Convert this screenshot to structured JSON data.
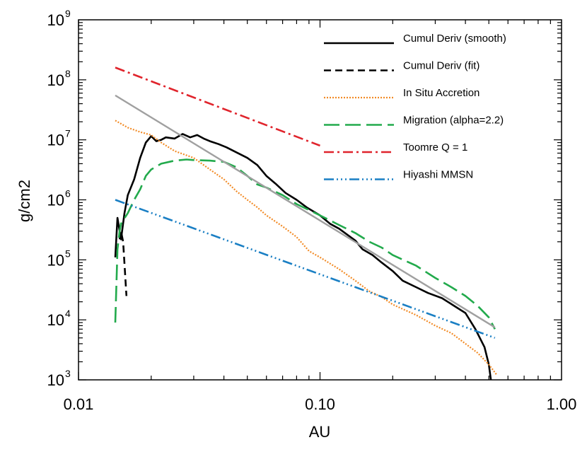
{
  "chart_data": {
    "type": "line",
    "title": "",
    "xlabel": "AU",
    "ylabel": "g/cm2",
    "xscale": "log",
    "yscale": "log",
    "xlim": [
      0.01,
      1.0
    ],
    "ylim": [
      1000,
      1000000000
    ],
    "x_tick_labels": [
      "0.01",
      "0.10",
      "1.00"
    ],
    "x_tick_values": [
      0.01,
      0.1,
      1.0
    ],
    "y_tick_values": [
      1000,
      10000,
      100000,
      1000000,
      10000000,
      100000000,
      1000000000
    ],
    "y_tick_labels": [
      {
        "base": "10",
        "exp": "3"
      },
      {
        "base": "10",
        "exp": "4"
      },
      {
        "base": "10",
        "exp": "5"
      },
      {
        "base": "10",
        "exp": "6"
      },
      {
        "base": "10",
        "exp": "7"
      },
      {
        "base": "10",
        "exp": "8"
      },
      {
        "base": "10",
        "exp": "9"
      }
    ],
    "legend_position": "top-right",
    "grid": false,
    "series": [
      {
        "name": "Cumul Deriv (smooth)",
        "color": "#000000",
        "dash": "solid",
        "width": 2.6,
        "points": [
          [
            0.0142,
            110000.0
          ],
          [
            0.0145,
            500000.0
          ],
          [
            0.015,
            220000.0
          ],
          [
            0.0155,
            600000.0
          ],
          [
            0.016,
            1200000.0
          ],
          [
            0.017,
            2200000.0
          ],
          [
            0.018,
            5000000.0
          ],
          [
            0.019,
            9000000.0
          ],
          [
            0.02,
            11500000.0
          ],
          [
            0.021,
            9500000.0
          ],
          [
            0.022,
            10000000.0
          ],
          [
            0.023,
            11000000.0
          ],
          [
            0.025,
            10500000.0
          ],
          [
            0.027,
            12500000.0
          ],
          [
            0.029,
            11000000.0
          ],
          [
            0.031,
            12000000.0
          ],
          [
            0.033,
            10500000.0
          ],
          [
            0.035,
            9500000.0
          ],
          [
            0.038,
            8500000.0
          ],
          [
            0.041,
            7500000.0
          ],
          [
            0.045,
            6200000.0
          ],
          [
            0.05,
            5000000.0
          ],
          [
            0.055,
            3800000.0
          ],
          [
            0.06,
            2500000.0
          ],
          [
            0.066,
            1800000.0
          ],
          [
            0.072,
            1300000.0
          ],
          [
            0.08,
            1000000.0
          ],
          [
            0.088,
            750000.0
          ],
          [
            0.1,
            550000.0
          ],
          [
            0.11,
            400000.0
          ],
          [
            0.12,
            330000.0
          ],
          [
            0.13,
            260000.0
          ],
          [
            0.14,
            210000.0
          ],
          [
            0.15,
            150000.0
          ],
          [
            0.165,
            120000.0
          ],
          [
            0.18,
            90000.0
          ],
          [
            0.2,
            65000.0
          ],
          [
            0.22,
            45000.0
          ],
          [
            0.25,
            35000.0
          ],
          [
            0.28,
            28000.0
          ],
          [
            0.32,
            23000.0
          ],
          [
            0.36,
            17000.0
          ],
          [
            0.4,
            13000.0
          ],
          [
            0.44,
            7000.0
          ],
          [
            0.48,
            3500.0
          ],
          [
            0.5,
            1800.0
          ],
          [
            0.51,
            1000.0
          ]
        ]
      },
      {
        "name": "Cumul Deriv (fit)",
        "color": "#000000",
        "dash": "10,6",
        "width": 2.6,
        "points": [
          [
            0.0148,
            220000.0
          ],
          [
            0.015,
            300000.0
          ],
          [
            0.0153,
            200000.0
          ],
          [
            0.0158,
            25000.0
          ]
        ]
      },
      {
        "name": "In Situ Accretion",
        "color": "#f28c28",
        "dash": "2,2",
        "width": 2.2,
        "points": [
          [
            0.0142,
            21000000.0
          ],
          [
            0.016,
            16000000.0
          ],
          [
            0.018,
            13500000.0
          ],
          [
            0.02,
            12000000.0
          ],
          [
            0.022,
            9000000.0
          ],
          [
            0.025,
            6500000.0
          ],
          [
            0.03,
            5000000.0
          ],
          [
            0.035,
            3200000.0
          ],
          [
            0.04,
            2200000.0
          ],
          [
            0.045,
            1400000.0
          ],
          [
            0.05,
            1000000.0
          ],
          [
            0.055,
            750000.0
          ],
          [
            0.06,
            550000.0
          ],
          [
            0.07,
            360000.0
          ],
          [
            0.08,
            240000.0
          ],
          [
            0.09,
            140000.0
          ],
          [
            0.1,
            110000.0
          ],
          [
            0.12,
            70000.0
          ],
          [
            0.14,
            45000.0
          ],
          [
            0.16,
            30000.0
          ],
          [
            0.18,
            24000.0
          ],
          [
            0.2,
            18000.0
          ],
          [
            0.25,
            12000.0
          ],
          [
            0.3,
            8000.0
          ],
          [
            0.35,
            6000.0
          ],
          [
            0.4,
            4000.0
          ],
          [
            0.45,
            2800.0
          ],
          [
            0.5,
            1800.0
          ],
          [
            0.54,
            1200.0
          ]
        ]
      },
      {
        "name": "Migration (alpha=2.2)",
        "color": "#22aa4c",
        "dash": "22,8",
        "width": 2.6,
        "points": [
          [
            0.0142,
            9000.0
          ],
          [
            0.0145,
            150000.0
          ],
          [
            0.0148,
            300000.0
          ],
          [
            0.015,
            400000.0
          ],
          [
            0.016,
            600000.0
          ],
          [
            0.017,
            1000000.0
          ],
          [
            0.018,
            1500000.0
          ],
          [
            0.019,
            2500000.0
          ],
          [
            0.02,
            3200000.0
          ],
          [
            0.022,
            4000000.0
          ],
          [
            0.025,
            4500000.0
          ],
          [
            0.028,
            4700000.0
          ],
          [
            0.03,
            4600000.0
          ],
          [
            0.035,
            4500000.0
          ],
          [
            0.04,
            4300000.0
          ],
          [
            0.045,
            3500000.0
          ],
          [
            0.05,
            2500000.0
          ],
          [
            0.055,
            1800000.0
          ],
          [
            0.06,
            1600000.0
          ],
          [
            0.07,
            1200000.0
          ],
          [
            0.08,
            850000.0
          ],
          [
            0.1,
            550000.0
          ],
          [
            0.12,
            380000.0
          ],
          [
            0.14,
            280000.0
          ],
          [
            0.16,
            200000.0
          ],
          [
            0.18,
            160000.0
          ],
          [
            0.2,
            120000.0
          ],
          [
            0.25,
            80000.0
          ],
          [
            0.3,
            50000.0
          ],
          [
            0.35,
            35000.0
          ],
          [
            0.4,
            25000.0
          ],
          [
            0.45,
            17000.0
          ],
          [
            0.5,
            11000.0
          ],
          [
            0.53,
            7000.0
          ]
        ]
      },
      {
        "name": "Toomre Q = 1",
        "color": "#e0242c",
        "dash": "14,5,3,5",
        "width": 2.6,
        "points": [
          [
            0.0142,
            160000000.0
          ],
          [
            0.1,
            8000000.0
          ]
        ]
      },
      {
        "name": "Hiyashi MMSN",
        "color": "#1a7fc4",
        "dash": "14,4,2,4,2,4,2,4",
        "width": 2.6,
        "points": [
          [
            0.0142,
            1000000.0
          ],
          [
            0.53,
            5000.0
          ]
        ]
      },
      {
        "name": "",
        "color": "#a0a0a0",
        "dash": "solid",
        "width": 2.4,
        "points": [
          [
            0.0142,
            55000000.0
          ],
          [
            0.53,
            7500.0
          ]
        ]
      }
    ]
  }
}
